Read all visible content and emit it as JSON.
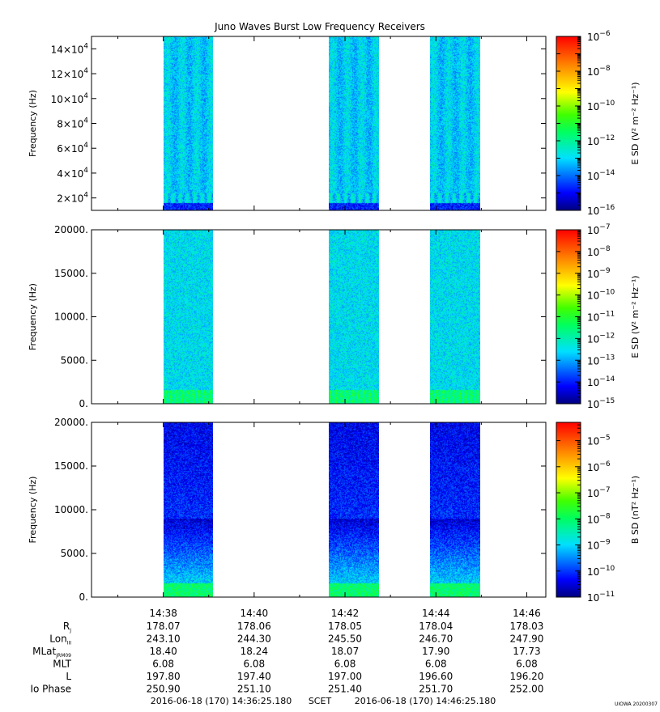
{
  "chart_data": [
    {
      "type": "heatmap",
      "title": "Juno Waves Burst Low Frequency Receivers",
      "ylabel": "Frequency (Hz)",
      "ylim": [
        10000,
        150000
      ],
      "yticks": [
        {
          "v": 20000,
          "m": "2",
          "e": "4"
        },
        {
          "v": 40000,
          "m": "4",
          "e": "4"
        },
        {
          "v": 60000,
          "m": "6",
          "e": "4"
        },
        {
          "v": 80000,
          "m": "8",
          "e": "4"
        },
        {
          "v": 100000,
          "m": "10",
          "e": "4"
        },
        {
          "v": 120000,
          "m": "12",
          "e": "4"
        },
        {
          "v": 140000,
          "m": "14",
          "e": "4"
        }
      ],
      "xlim_minutes": [
        36.42,
        46.42
      ],
      "bursts_minutes": [
        [
          38.0,
          39.1
        ],
        [
          41.65,
          42.75
        ],
        [
          43.87,
          44.97
        ]
      ],
      "colorbar": {
        "label": "E SD (V² m⁻² Hz⁻¹)",
        "min_exp": -16,
        "max_exp": -6,
        "labeled_exps": [
          -6,
          -8,
          -10,
          -12,
          -14,
          -16
        ]
      }
    },
    {
      "type": "heatmap",
      "ylabel": "Frequency (Hz)",
      "ylim": [
        0,
        20000
      ],
      "yticks": [
        {
          "v": 0,
          "label": "0."
        },
        {
          "v": 5000,
          "label": "5000."
        },
        {
          "v": 10000,
          "label": "10000."
        },
        {
          "v": 15000,
          "label": "15000."
        },
        {
          "v": 20000,
          "label": "20000."
        }
      ],
      "xlim_minutes": [
        36.42,
        46.42
      ],
      "bursts_minutes": [
        [
          38.0,
          39.1
        ],
        [
          41.65,
          42.75
        ],
        [
          43.87,
          44.97
        ]
      ],
      "colorbar": {
        "label": "E SD (V² m⁻² Hz⁻¹)",
        "min_exp": -15,
        "max_exp": -7,
        "labeled_exps": [
          -7,
          -8,
          -9,
          -10,
          -11,
          -12,
          -13,
          -14,
          -15
        ]
      }
    },
    {
      "type": "heatmap",
      "ylabel": "Frequency (Hz)",
      "ylim": [
        0,
        20000
      ],
      "yticks": [
        {
          "v": 0,
          "label": "0."
        },
        {
          "v": 5000,
          "label": "5000."
        },
        {
          "v": 10000,
          "label": "10000."
        },
        {
          "v": 15000,
          "label": "15000."
        },
        {
          "v": 20000,
          "label": "20000."
        }
      ],
      "xlim_minutes": [
        36.42,
        46.42
      ],
      "bursts_minutes": [
        [
          38.0,
          39.1
        ],
        [
          41.65,
          42.75
        ],
        [
          43.87,
          44.97
        ]
      ],
      "colorbar": {
        "label": "B SD (nT² Hz⁻¹)",
        "min_exp": -11,
        "max_exp": -4.3,
        "labeled_exps": [
          -5,
          -6,
          -7,
          -8,
          -9,
          -10,
          -11
        ]
      }
    }
  ],
  "x_axis": {
    "ticks": [
      {
        "v": 38,
        "label": "14:38"
      },
      {
        "v": 40,
        "label": "14:40"
      },
      {
        "v": 42,
        "label": "14:42"
      },
      {
        "v": 44,
        "label": "14:44"
      },
      {
        "v": 46,
        "label": "14:46"
      }
    ],
    "minor": [
      37,
      39,
      41,
      43,
      45
    ]
  },
  "ephemeris": [
    {
      "name": "R",
      "sub": "J",
      "values": [
        "178.07",
        "178.06",
        "178.05",
        "178.04",
        "178.03"
      ]
    },
    {
      "name": "Lon",
      "sub": "III",
      "values": [
        "243.10",
        "244.30",
        "245.50",
        "246.70",
        "247.90"
      ]
    },
    {
      "name": "MLat",
      "sub": "JRM09",
      "values": [
        "18.40",
        "18.24",
        "18.07",
        "17.90",
        "17.73"
      ]
    },
    {
      "name": "MLT",
      "sub": "",
      "values": [
        "6.08",
        "6.08",
        "6.08",
        "6.08",
        "6.08"
      ]
    },
    {
      "name": "L",
      "sub": "",
      "values": [
        "197.80",
        "197.40",
        "197.00",
        "196.60",
        "196.20"
      ]
    },
    {
      "name": "Io Phase",
      "sub": "",
      "values": [
        "250.90",
        "251.10",
        "251.40",
        "251.70",
        "252.00"
      ]
    }
  ],
  "footer": {
    "start": "2016-06-18 (170) 14:36:25.180",
    "scet": "SCET",
    "end": "2016-06-18 (170) 14:46:25.180",
    "stamp": "UIOWA 20200307"
  }
}
